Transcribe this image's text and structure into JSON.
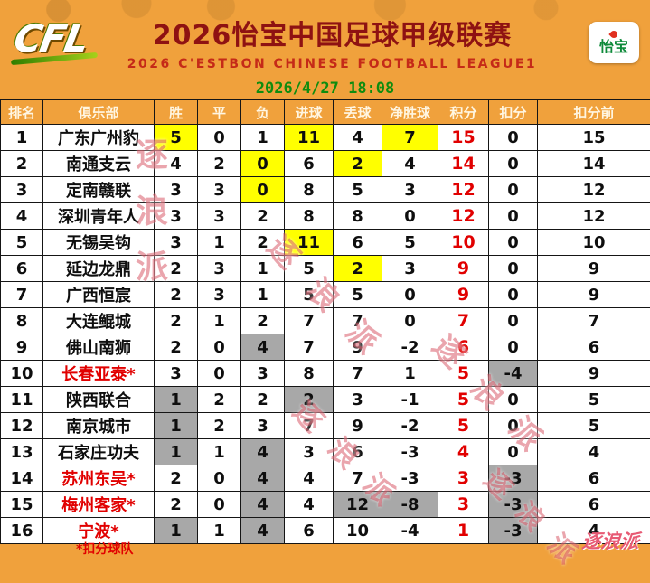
{
  "header": {
    "logo": "CFL",
    "title_cn": "2026怡宝中国足球甲级联赛",
    "title_en": "2026 C'ESTBON CHINESE FOOTBALL LEAGUE1",
    "sponsor_badge": "怡宝",
    "timestamp": "2026/4/27 18:08"
  },
  "chart_data": {
    "type": "table",
    "title": "2026中国足球甲级联赛积分榜",
    "columns": [
      "排名",
      "俱乐部",
      "胜",
      "平",
      "负",
      "进球",
      "丢球",
      "净胜球",
      "积分",
      "扣分",
      "扣分前"
    ],
    "rows": [
      {
        "rank": 1,
        "club": "广东广州豹",
        "w": 5,
        "d": 0,
        "l": 1,
        "gf": 11,
        "ga": 4,
        "gd": 7,
        "pts": 15,
        "ded": 0,
        "pre": 15,
        "club_red": false,
        "hl": {
          "w": "y",
          "gf": "y",
          "gd": "y"
        }
      },
      {
        "rank": 2,
        "club": "南通支云",
        "w": 4,
        "d": 2,
        "l": 0,
        "gf": 6,
        "ga": 2,
        "gd": 4,
        "pts": 14,
        "ded": 0,
        "pre": 14,
        "club_red": false,
        "hl": {
          "l": "y",
          "ga": "y"
        }
      },
      {
        "rank": 3,
        "club": "定南赣联",
        "w": 3,
        "d": 3,
        "l": 0,
        "gf": 8,
        "ga": 5,
        "gd": 3,
        "pts": 12,
        "ded": 0,
        "pre": 12,
        "club_red": false,
        "hl": {
          "l": "y"
        }
      },
      {
        "rank": 4,
        "club": "深圳青年人",
        "w": 3,
        "d": 3,
        "l": 2,
        "gf": 8,
        "ga": 8,
        "gd": 0,
        "pts": 12,
        "ded": 0,
        "pre": 12,
        "club_red": false,
        "hl": {}
      },
      {
        "rank": 5,
        "club": "无锡吴钩",
        "w": 3,
        "d": 1,
        "l": 2,
        "gf": 11,
        "ga": 6,
        "gd": 5,
        "pts": 10,
        "ded": 0,
        "pre": 10,
        "club_red": false,
        "hl": {
          "gf": "y"
        }
      },
      {
        "rank": 6,
        "club": "延边龙鼎",
        "w": 2,
        "d": 3,
        "l": 1,
        "gf": 5,
        "ga": 2,
        "gd": 3,
        "pts": 9,
        "ded": 0,
        "pre": 9,
        "club_red": false,
        "hl": {
          "ga": "y"
        }
      },
      {
        "rank": 7,
        "club": "广西恒宸",
        "w": 2,
        "d": 3,
        "l": 1,
        "gf": 5,
        "ga": 5,
        "gd": 0,
        "pts": 9,
        "ded": 0,
        "pre": 9,
        "club_red": false,
        "hl": {}
      },
      {
        "rank": 8,
        "club": "大连鲲城",
        "w": 2,
        "d": 1,
        "l": 2,
        "gf": 7,
        "ga": 7,
        "gd": 0,
        "pts": 7,
        "ded": 0,
        "pre": 7,
        "club_red": false,
        "hl": {}
      },
      {
        "rank": 9,
        "club": "佛山南狮",
        "w": 2,
        "d": 0,
        "l": 4,
        "gf": 7,
        "ga": 9,
        "gd": -2,
        "pts": 6,
        "ded": 0,
        "pre": 6,
        "club_red": false,
        "hl": {
          "l": "g"
        }
      },
      {
        "rank": 10,
        "club": "长春亚泰*",
        "w": 3,
        "d": 0,
        "l": 3,
        "gf": 8,
        "ga": 7,
        "gd": 1,
        "pts": 5,
        "ded": -4,
        "pre": 9,
        "club_red": true,
        "hl": {
          "ded": "g"
        }
      },
      {
        "rank": 11,
        "club": "陕西联合",
        "w": 1,
        "d": 2,
        "l": 2,
        "gf": 2,
        "ga": 3,
        "gd": -1,
        "pts": 5,
        "ded": 0,
        "pre": 5,
        "club_red": false,
        "hl": {
          "w": "g",
          "gf": "g"
        }
      },
      {
        "rank": 12,
        "club": "南京城市",
        "w": 1,
        "d": 2,
        "l": 3,
        "gf": 7,
        "ga": 9,
        "gd": -2,
        "pts": 5,
        "ded": 0,
        "pre": 5,
        "club_red": false,
        "hl": {
          "w": "g"
        }
      },
      {
        "rank": 13,
        "club": "石家庄功夫",
        "w": 1,
        "d": 1,
        "l": 4,
        "gf": 3,
        "ga": 6,
        "gd": -3,
        "pts": 4,
        "ded": 0,
        "pre": 4,
        "club_red": false,
        "hl": {
          "w": "g",
          "l": "g"
        }
      },
      {
        "rank": 14,
        "club": "苏州东吴*",
        "w": 2,
        "d": 0,
        "l": 4,
        "gf": 4,
        "ga": 7,
        "gd": -3,
        "pts": 3,
        "ded": -3,
        "pre": 6,
        "club_red": true,
        "hl": {
          "l": "g",
          "ded": "g"
        }
      },
      {
        "rank": 15,
        "club": "梅州客家*",
        "w": 2,
        "d": 0,
        "l": 4,
        "gf": 4,
        "ga": 12,
        "gd": -8,
        "pts": 3,
        "ded": -3,
        "pre": 6,
        "club_red": true,
        "hl": {
          "l": "g",
          "ga": "g",
          "gd": "g",
          "ded": "g"
        }
      },
      {
        "rank": 16,
        "club": "宁波*",
        "w": 1,
        "d": 1,
        "l": 4,
        "gf": 6,
        "ga": 10,
        "gd": -4,
        "pts": 1,
        "ded": -3,
        "pre": 4,
        "club_red": true,
        "hl": {
          "w": "g",
          "l": "g",
          "ded": "g"
        }
      }
    ]
  },
  "footer": {
    "note": "*扣分球队"
  },
  "watermark": {
    "text": "逐浪派",
    "brand": "逐浪派"
  },
  "colors": {
    "background_orange": "#F0A13C",
    "title_maroon": "#8E1212",
    "subtitle_red": "#C52A18",
    "timestamp_green": "#0F8C0F",
    "highlight_yellow": "#FFFF00",
    "highlight_gray": "#A8A8A8",
    "points_red": "#E10000",
    "sponsor_green": "#0E8A3A"
  }
}
